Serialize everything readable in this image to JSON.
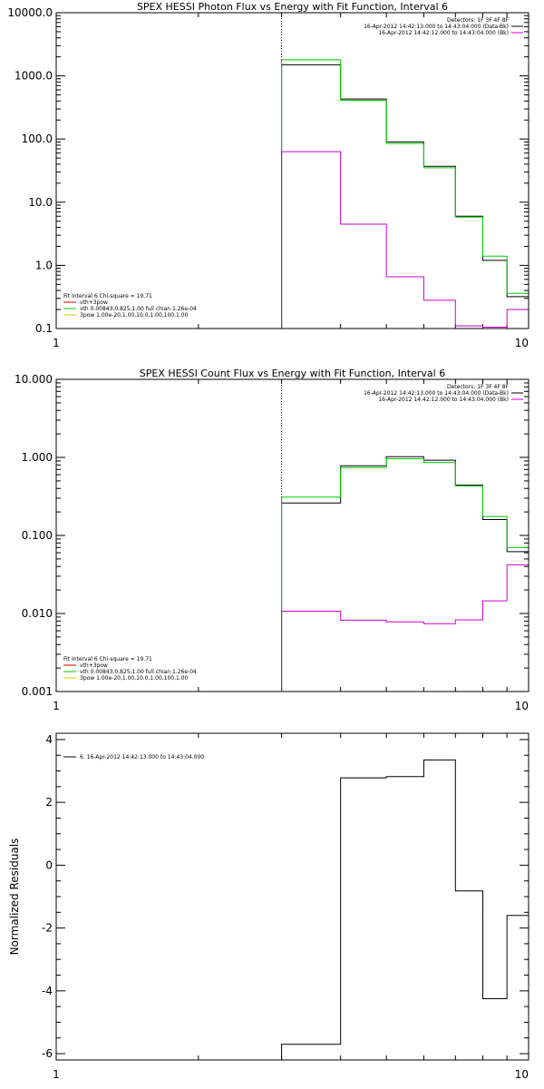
{
  "chart_data": [
    {
      "type": "line",
      "title": "SPEX HESSI Photon Flux vs Energy with Fit Function, Interval 6",
      "xscale": "log",
      "yscale": "log",
      "xlim": [
        1,
        10
      ],
      "ylim": [
        0.1,
        10000
      ],
      "xticks": [
        1,
        10
      ],
      "xtick_labels": [
        "1",
        "10"
      ],
      "yticks": [
        0.1,
        1,
        10,
        100,
        1000,
        10000
      ],
      "ytick_labels": [
        "0.1",
        "1.0",
        "10.0",
        "100.0",
        "1000.0",
        "10000.0"
      ],
      "vline_x": 3.0,
      "edges": [
        3.0,
        4.0,
        5.0,
        6.0,
        7.0,
        8.0,
        9.0,
        10.0
      ],
      "series": [
        {
          "name": "data",
          "color": "#000000",
          "values": [
            1500,
            430,
            90,
            37,
            6,
            1.2,
            0.32
          ]
        },
        {
          "name": "vth+3pow",
          "color": "#00cc00",
          "values": [
            1800,
            410,
            85,
            35,
            5.8,
            1.4,
            0.36
          ]
        },
        {
          "name": "background",
          "color": "#cc00cc",
          "values": [
            63,
            4.5,
            0.66,
            0.28,
            0.11,
            0.105,
            0.2
          ]
        }
      ],
      "legend_top": {
        "header": "Detectors: 1F 3F 4F 8F",
        "entries": [
          {
            "label": "16-Apr-2012 14:42:13.000 to 14:43:04.000 (Data-Bk)",
            "color": "#000000"
          },
          {
            "label": "16-Apr-2012 14:42:12.000 to 14:43:04.000 (Bk)",
            "color": "#cc00cc"
          }
        ]
      },
      "legend_bottom": {
        "header": "Fit Interval 6   Chi-square = 19.71",
        "entries": [
          {
            "label": "vth+3pow",
            "color": "#cc0000"
          },
          {
            "label": "vth 0.00843,0.825,1.00  full chian 1.26e-04",
            "color": "#00cc00"
          },
          {
            "label": "3pow 1.00e-20,1.00,10.0,1.00,100,1.00",
            "color": "#cccc00"
          }
        ]
      }
    },
    {
      "type": "line",
      "title": "SPEX HESSI Count Flux vs Energy with Fit Function, Interval 6",
      "xscale": "log",
      "yscale": "log",
      "xlim": [
        1,
        10
      ],
      "ylim": [
        0.001,
        10
      ],
      "xticks": [
        1,
        10
      ],
      "xtick_labels": [
        "1",
        "10"
      ],
      "yticks": [
        0.001,
        0.01,
        0.1,
        1,
        10
      ],
      "ytick_labels": [
        "0.001",
        "0.010",
        "0.100",
        "1.000",
        "10.000"
      ],
      "vline_x": 3.0,
      "edges": [
        3.0,
        4.0,
        5.0,
        6.0,
        7.0,
        8.0,
        9.0,
        10.0
      ],
      "series": [
        {
          "name": "data",
          "color": "#000000",
          "values": [
            0.26,
            0.78,
            1.02,
            0.92,
            0.44,
            0.16,
            0.062
          ]
        },
        {
          "name": "vth+3pow",
          "color": "#00cc00",
          "values": [
            0.31,
            0.74,
            0.96,
            0.86,
            0.43,
            0.175,
            0.07
          ]
        },
        {
          "name": "background",
          "color": "#cc00cc",
          "values": [
            0.0107,
            0.0082,
            0.0078,
            0.0074,
            0.0083,
            0.0145,
            0.042
          ]
        }
      ],
      "legend_top": {
        "header": "Detectors: 1F 3F 4F 8F",
        "entries": [
          {
            "label": "16-Apr-2012 14:42:13.000 to 14:43:04.000 (Data-Bk)",
            "color": "#000000"
          },
          {
            "label": "16-Apr-2012 14:42:12.000 to 14:43:04.000 (Bk)",
            "color": "#cc00cc"
          }
        ]
      },
      "legend_bottom": {
        "header": "Fit Interval 6   Chi-square = 19.71",
        "entries": [
          {
            "label": "vth+3pow",
            "color": "#cc0000"
          },
          {
            "label": "vth 0.00843,0.825,1.00  full chian 1.26e-04",
            "color": "#00cc00"
          },
          {
            "label": "3pow 1.00e-20,1.00,10.0,1.00,100,1.00",
            "color": "#cccc00"
          }
        ]
      }
    },
    {
      "type": "line",
      "title": "",
      "xscale": "log",
      "yscale": "linear",
      "xlim": [
        1,
        10
      ],
      "ylim": [
        -6.2,
        4.2
      ],
      "xticks": [
        1,
        10
      ],
      "xtick_labels": [
        "1",
        "10"
      ],
      "yticks": [
        -6,
        -4,
        -2,
        0,
        2,
        4
      ],
      "ytick_labels": [
        "-6",
        "-4",
        "-2",
        "0",
        "2",
        "4"
      ],
      "ylabel": "Normalized Residuals",
      "edges": [
        3.0,
        4.0,
        5.0,
        6.0,
        7.0,
        8.0,
        9.0,
        10.0
      ],
      "series": [
        {
          "name": "residuals",
          "color": "#000000",
          "values": [
            -5.7,
            2.78,
            2.82,
            3.35,
            -0.82,
            -4.25,
            -1.6
          ]
        }
      ],
      "legend_top": {
        "header": "",
        "entries": [
          {
            "label": "6. 16-Apr-2012 14:42:13.000 to 14:43:04.000",
            "color": "#000000"
          }
        ]
      }
    }
  ]
}
